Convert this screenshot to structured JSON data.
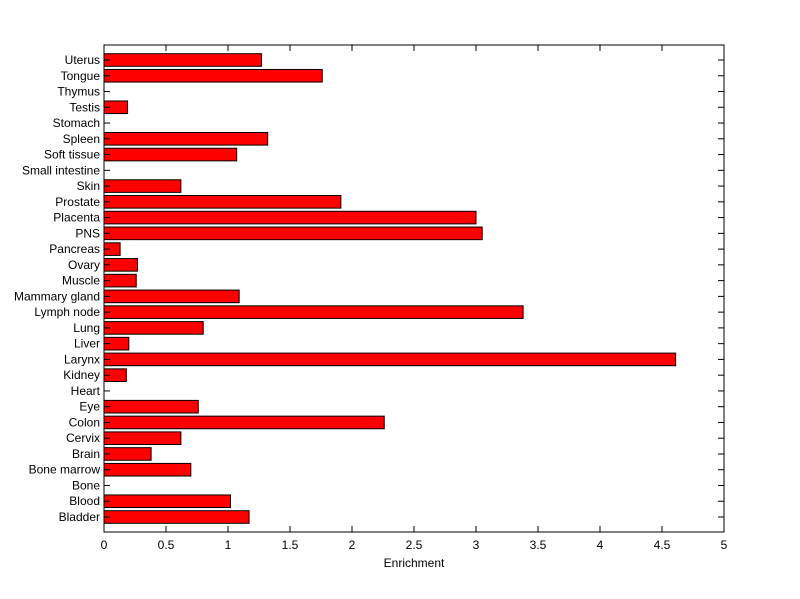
{
  "chart_data": {
    "type": "bar",
    "orientation": "horizontal",
    "title": "",
    "xlabel": "Enrichment",
    "ylabel": "",
    "xlim": [
      0,
      5
    ],
    "xticks": [
      "0",
      "0.5",
      "1",
      "1.5",
      "2",
      "2.5",
      "3",
      "3.5",
      "4",
      "4.5",
      "5"
    ],
    "grid": false,
    "bar_color": "#ff0000",
    "categories": [
      "Bladder",
      "Blood",
      "Bone",
      "Bone marrow",
      "Brain",
      "Cervix",
      "Colon",
      "Eye",
      "Heart",
      "Kidney",
      "Larynx",
      "Liver",
      "Lung",
      "Lymph node",
      "Mammary gland",
      "Muscle",
      "Ovary",
      "Pancreas",
      "PNS",
      "Placenta",
      "Prostate",
      "Skin",
      "Small intestine",
      "Soft tissue",
      "Spleen",
      "Stomach",
      "Testis",
      "Thymus",
      "Tongue",
      "Uterus"
    ],
    "values": [
      1.17,
      1.02,
      0,
      0.7,
      0.38,
      0.62,
      2.26,
      0.76,
      0,
      0.18,
      4.61,
      0.2,
      0.8,
      3.38,
      1.09,
      0.26,
      0.27,
      0.13,
      3.05,
      3.0,
      1.91,
      0.62,
      0,
      1.07,
      1.32,
      0,
      0.19,
      0,
      1.76,
      1.27
    ]
  }
}
